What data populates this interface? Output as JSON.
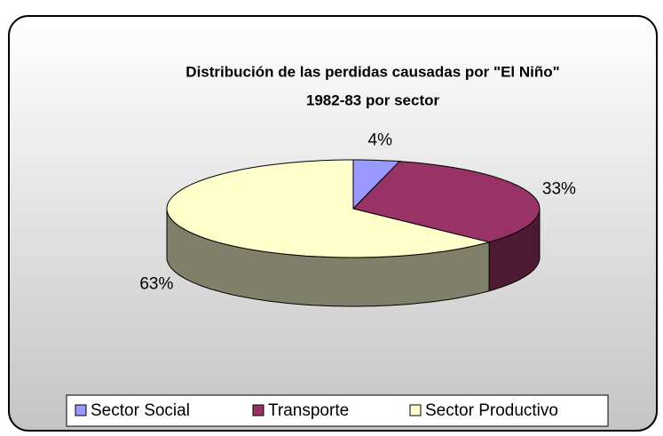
{
  "chart_data": {
    "type": "pie3d",
    "title": [
      "Distribución de las perdidas causadas por \"El Niño\"",
      "1982-83 por sector"
    ],
    "categories": [
      "Sector Social",
      "Transporte",
      "Sector Productivo"
    ],
    "values": [
      4,
      33,
      63
    ],
    "value_labels": [
      "4%",
      "33%",
      "63%"
    ],
    "colors": [
      "#9999ff",
      "#993366",
      "#ffffcc"
    ],
    "side_colors": [
      "#4d4d80",
      "#4d1a33",
      "#80806a"
    ],
    "legend": "bottom"
  }
}
